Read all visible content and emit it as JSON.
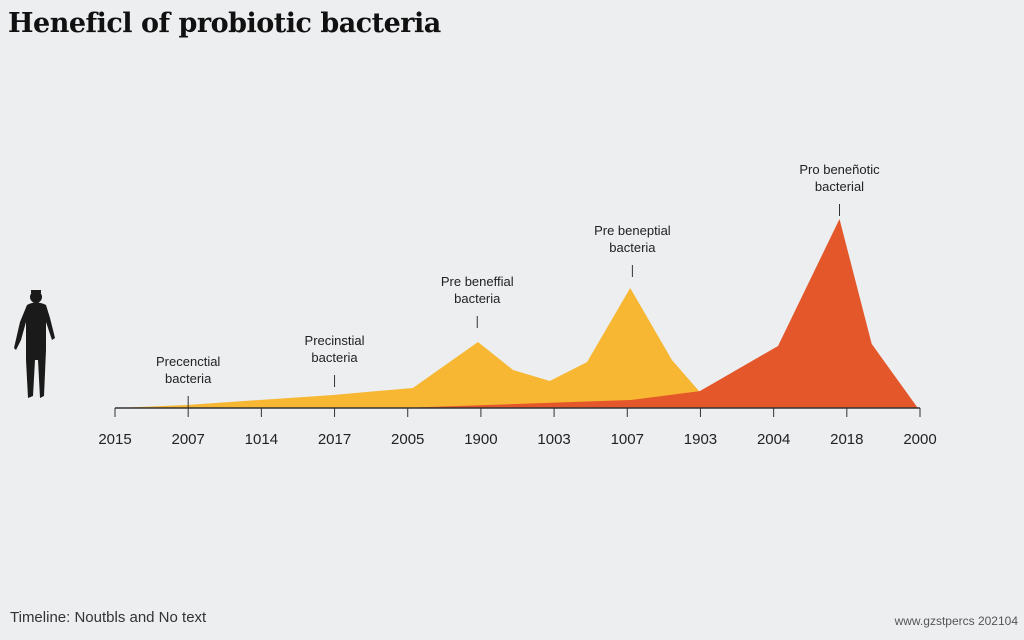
{
  "chart_data": {
    "type": "area",
    "title": "Heneficl of probiotic bacteria",
    "categories": [
      "2015",
      "2007",
      "1014",
      "2017",
      "2005",
      "1900",
      "1003",
      "1007",
      "1903",
      "2004",
      "2018",
      "2000"
    ],
    "xlabel": "",
    "ylabel": "",
    "ylim": [
      0,
      100
    ],
    "grid": false,
    "legend": "none",
    "series": [
      {
        "color": "#f7b733",
        "x": [
          0,
          0.98,
          2.98,
          4.07,
          4.96,
          5.44,
          5.94,
          6.45,
          7.04,
          7.61,
          7.99
        ],
        "values": [
          0,
          1.6,
          6.9,
          10.6,
          34.9,
          20.1,
          14.3,
          24.3,
          63.5,
          25.4,
          8.5
        ]
      },
      {
        "color": "#e4572a",
        "x": [
          3.89,
          7.04,
          7.99,
          9.06,
          9.9,
          10.34,
          10.97
        ],
        "values": [
          0,
          4.2,
          8.9,
          32.8,
          100,
          33.9,
          0
        ]
      }
    ],
    "annotations": [
      {
        "x": 1,
        "lines": [
          "Precenctial",
          "bacteria"
        ]
      },
      {
        "x": 3,
        "lines": [
          "Precinstial",
          "bacteria"
        ]
      },
      {
        "x": 4.95,
        "lines": [
          "Pre beneffial",
          "bacteria"
        ]
      },
      {
        "x": 7.07,
        "lines": [
          "Pre beneptial",
          "bacteria"
        ]
      },
      {
        "x": 9.9,
        "lines": [
          "Pro beneñotic",
          "bacterial"
        ]
      }
    ]
  },
  "footer": {
    "left": "Timeline: Noutbls and No text",
    "right": "www.gzstpercs 202104"
  },
  "icons": {
    "figure": "person-silhouette-icon"
  }
}
